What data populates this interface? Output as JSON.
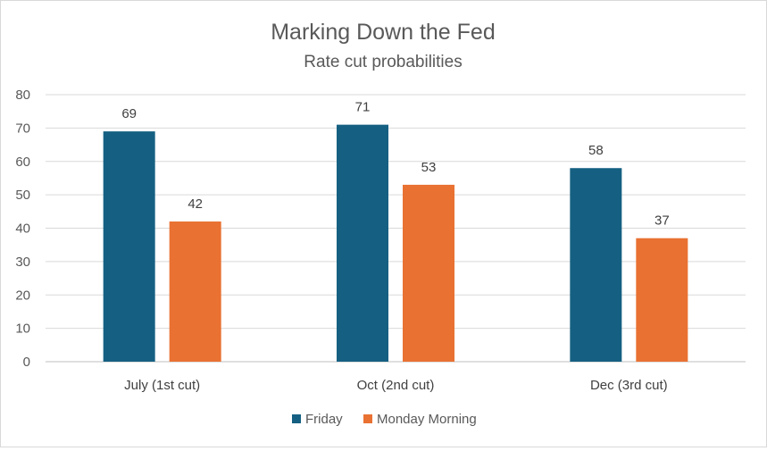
{
  "chart_data": {
    "type": "bar",
    "title": "Marking Down the Fed",
    "subtitle": "Rate cut probabilities",
    "categories": [
      "July (1st cut)",
      "Oct (2nd cut)",
      "Dec (3rd cut)"
    ],
    "series": [
      {
        "name": "Friday",
        "color": "#156082",
        "values": [
          69,
          71,
          58
        ]
      },
      {
        "name": "Monday Morning",
        "color": "#E97132",
        "values": [
          42,
          53,
          37
        ]
      }
    ],
    "xlabel": "",
    "ylabel": "",
    "ylim": [
      0,
      80
    ],
    "yticks": [
      0,
      10,
      20,
      30,
      40,
      50,
      60,
      70,
      80
    ],
    "grid": true,
    "data_labels": true,
    "legend_position": "bottom"
  }
}
